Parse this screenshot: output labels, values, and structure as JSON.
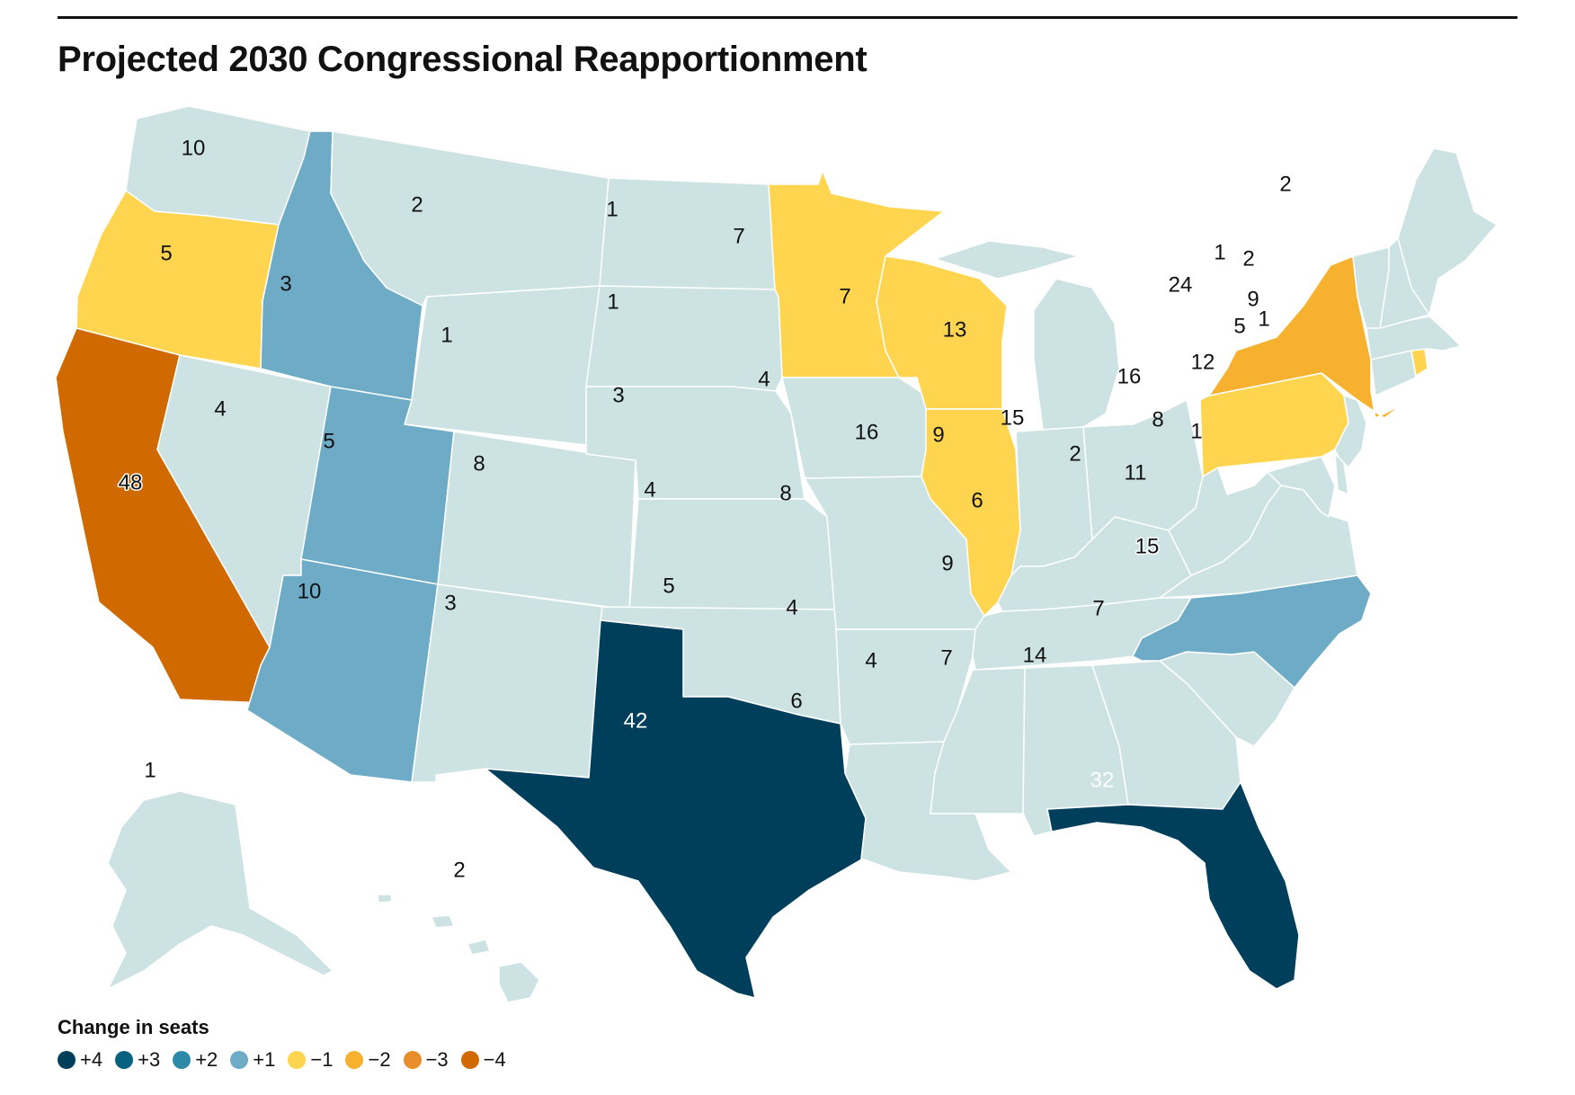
{
  "title": "Projected 2030 Congressional Reapportionment",
  "legend": {
    "title": "Change in seats",
    "items": [
      {
        "label": "+4",
        "change": 4,
        "color": "#003f5c"
      },
      {
        "label": "+3",
        "change": 3,
        "color": "#07617f"
      },
      {
        "label": "+2",
        "change": 2,
        "color": "#2e89a8"
      },
      {
        "label": "+1",
        "change": 1,
        "color": "#6eabc6"
      },
      {
        "label": "−1",
        "change": -1,
        "color": "#ffd54f"
      },
      {
        "label": "−2",
        "change": -2,
        "color": "#f6b12e"
      },
      {
        "label": "−3",
        "change": -3,
        "color": "#e88e2a"
      },
      {
        "label": "−4",
        "change": -4,
        "color": "#d06a00"
      }
    ]
  },
  "no_change_color": "#cde2e2",
  "states": [
    {
      "abbr": "WA",
      "seats": "10",
      "change": 0
    },
    {
      "abbr": "OR",
      "seats": "5",
      "change": -1
    },
    {
      "abbr": "CA",
      "seats": "48",
      "change": -4
    },
    {
      "abbr": "NV",
      "seats": "4",
      "change": 0
    },
    {
      "abbr": "ID",
      "seats": "3",
      "change": 1
    },
    {
      "abbr": "MT",
      "seats": "2",
      "change": 0
    },
    {
      "abbr": "WY",
      "seats": "1",
      "change": 0
    },
    {
      "abbr": "UT",
      "seats": "5",
      "change": 1
    },
    {
      "abbr": "AZ",
      "seats": "10",
      "change": 1
    },
    {
      "abbr": "CO",
      "seats": "8",
      "change": 0
    },
    {
      "abbr": "NM",
      "seats": "3",
      "change": 0
    },
    {
      "abbr": "ND",
      "seats": "1",
      "change": 0
    },
    {
      "abbr": "SD",
      "seats": "1",
      "change": 0
    },
    {
      "abbr": "NE",
      "seats": "3",
      "change": 0
    },
    {
      "abbr": "KS",
      "seats": "4",
      "change": 0
    },
    {
      "abbr": "OK",
      "seats": "5",
      "change": 0
    },
    {
      "abbr": "TX",
      "seats": "42",
      "change": 4
    },
    {
      "abbr": "MN",
      "seats": "7",
      "change": -1
    },
    {
      "abbr": "IA",
      "seats": "4",
      "change": 0
    },
    {
      "abbr": "MO",
      "seats": "8",
      "change": 0
    },
    {
      "abbr": "AR",
      "seats": "4",
      "change": 0
    },
    {
      "abbr": "LA",
      "seats": "6",
      "change": 0
    },
    {
      "abbr": "WI",
      "seats": "7",
      "change": -1
    },
    {
      "abbr": "IL",
      "seats": "16",
      "change": -1
    },
    {
      "abbr": "MI",
      "seats": "13",
      "change": 0
    },
    {
      "abbr": "IN",
      "seats": "9",
      "change": 0
    },
    {
      "abbr": "OH",
      "seats": "15",
      "change": 0
    },
    {
      "abbr": "KY",
      "seats": "6",
      "change": 0
    },
    {
      "abbr": "TN",
      "seats": "9",
      "change": 0
    },
    {
      "abbr": "MS",
      "seats": "4",
      "change": 0
    },
    {
      "abbr": "AL",
      "seats": "7",
      "change": 0
    },
    {
      "abbr": "GA",
      "seats": "14",
      "change": 0
    },
    {
      "abbr": "FL",
      "seats": "32",
      "change": 4
    },
    {
      "abbr": "SC",
      "seats": "7",
      "change": 0
    },
    {
      "abbr": "NC",
      "seats": "15",
      "change": 1
    },
    {
      "abbr": "VA",
      "seats": "11",
      "change": 0
    },
    {
      "abbr": "WV",
      "seats": "2",
      "change": 0
    },
    {
      "abbr": "PA",
      "seats": "16",
      "change": -1
    },
    {
      "abbr": "NY",
      "seats": "24",
      "change": -2
    },
    {
      "abbr": "NJ",
      "seats": "12",
      "change": 0
    },
    {
      "abbr": "MD",
      "seats": "8",
      "change": 0
    },
    {
      "abbr": "DE",
      "seats": "1",
      "change": 0
    },
    {
      "abbr": "CT",
      "seats": "5",
      "change": 0
    },
    {
      "abbr": "RI",
      "seats": "1",
      "change": -1
    },
    {
      "abbr": "MA",
      "seats": "9",
      "change": 0
    },
    {
      "abbr": "VT",
      "seats": "1",
      "change": 0
    },
    {
      "abbr": "NH",
      "seats": "2",
      "change": 0
    },
    {
      "abbr": "ME",
      "seats": "2",
      "change": 0
    },
    {
      "abbr": "AK",
      "seats": "1",
      "change": 0
    },
    {
      "abbr": "HI",
      "seats": "2",
      "change": 0
    }
  ]
}
